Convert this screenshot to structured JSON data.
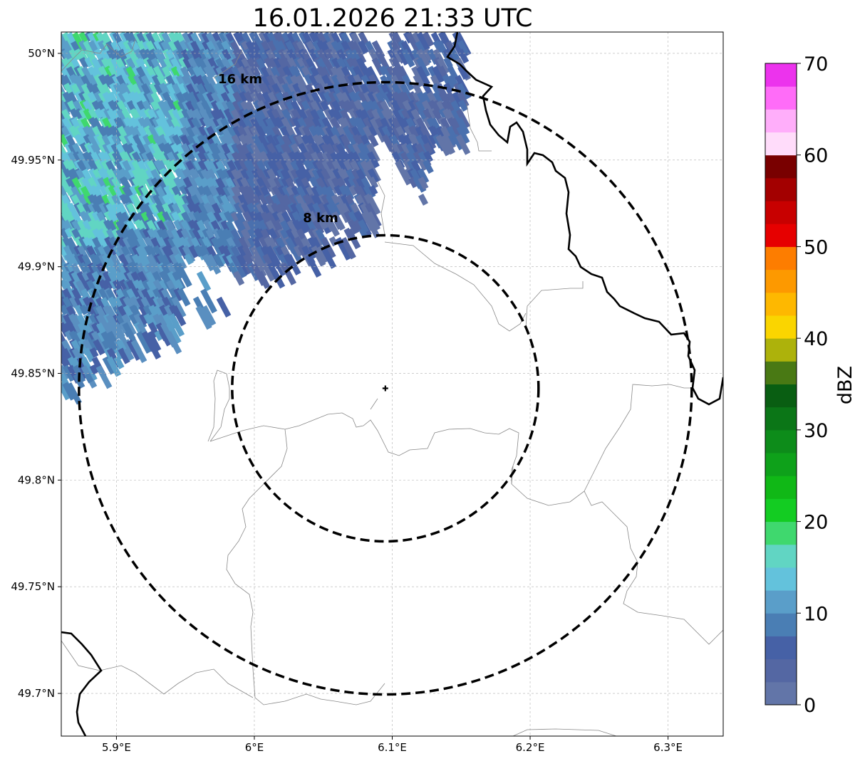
{
  "title": "16.01.2026 21:33 UTC",
  "map": {
    "lon_ticks": [
      {
        "value": 5.9,
        "label": "5.9°E"
      },
      {
        "value": 6.0,
        "label": "6°E"
      },
      {
        "value": 6.1,
        "label": "6.1°E"
      },
      {
        "value": 6.2,
        "label": "6.2°E"
      },
      {
        "value": 6.3,
        "label": "6.3°E"
      }
    ],
    "lat_ticks": [
      {
        "value": 50.0,
        "label": "50°N"
      },
      {
        "value": 49.95,
        "label": "49.95°N"
      },
      {
        "value": 49.9,
        "label": "49.9°N"
      },
      {
        "value": 49.85,
        "label": "49.85°N"
      },
      {
        "value": 49.8,
        "label": "49.8°N"
      },
      {
        "value": 49.75,
        "label": "49.75°N"
      },
      {
        "value": 49.7,
        "label": "49.7°N"
      }
    ],
    "lon_range": [
      5.86,
      6.34
    ],
    "lat_range": [
      49.68,
      50.01
    ],
    "grid": true,
    "radar_site": {
      "lon": 6.095,
      "lat": 49.843
    },
    "range_rings": [
      {
        "km": 8,
        "label": "8 km"
      },
      {
        "km": 16,
        "label": "16 km"
      }
    ]
  },
  "colorbar": {
    "label": "dBZ",
    "range": [
      0,
      70
    ],
    "ticks": [
      "0",
      "10",
      "20",
      "30",
      "40",
      "50",
      "60",
      "70"
    ],
    "colors": [
      "#6275a8",
      "#5467a3",
      "#4661a6",
      "#4a7eb4",
      "#5a9ec9",
      "#63c2dc",
      "#61d5c3",
      "#3fd86e",
      "#13cc22",
      "#10b816",
      "#0ea11a",
      "#0d8c1a",
      "#0b7617",
      "#095e12",
      "#497914",
      "#adb20b",
      "#fad500",
      "#feb800",
      "#fd9900",
      "#fd7d00",
      "#e60000",
      "#c80000",
      "#a30000",
      "#790000",
      "#ffdcfa",
      "#ffaefa",
      "#ff6cf8",
      "#ec33ed"
    ]
  }
}
